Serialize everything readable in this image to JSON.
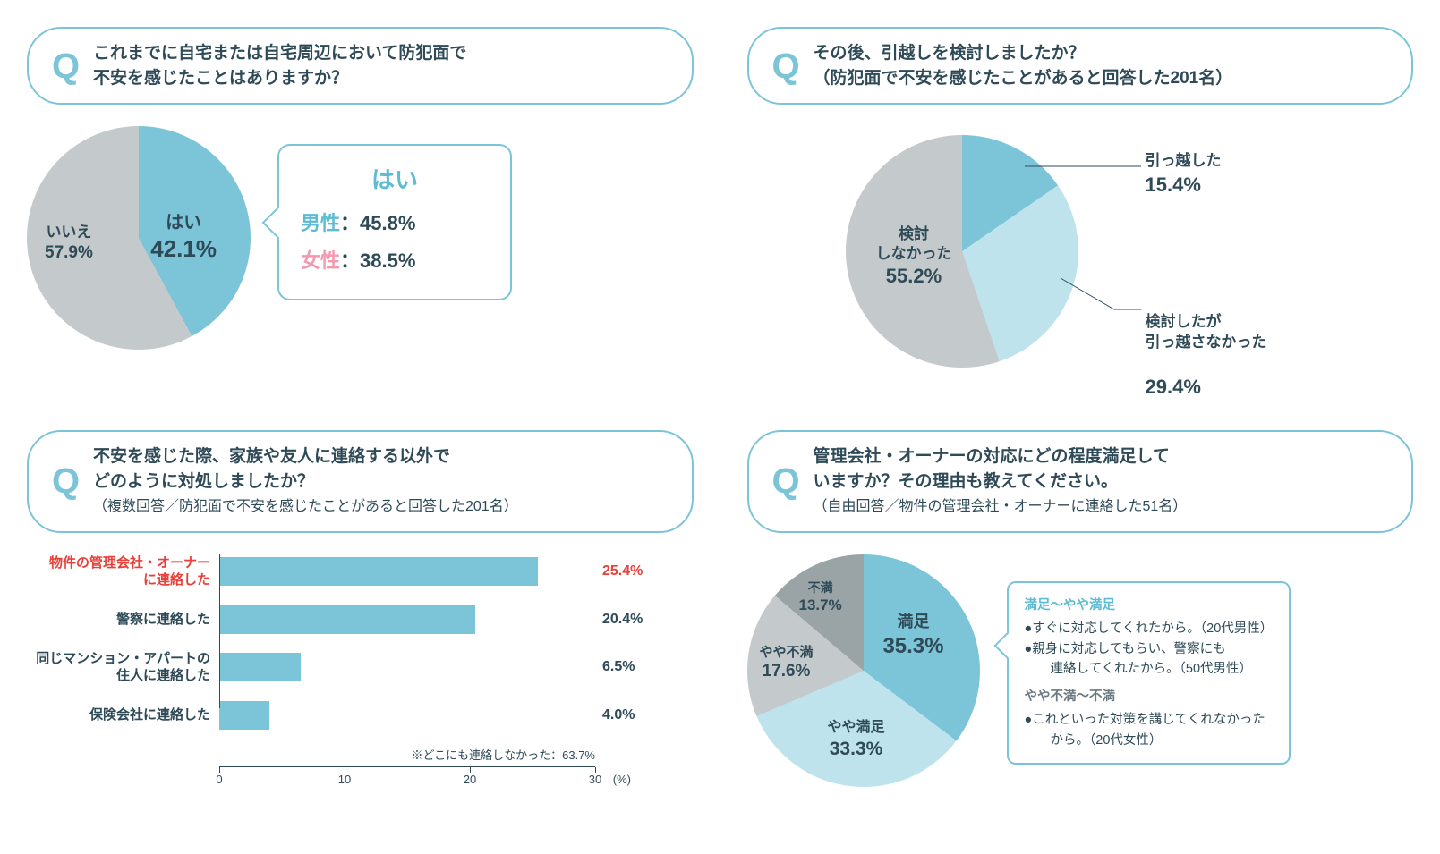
{
  "colors": {
    "accent": "#7cc5d8",
    "accent_light": "#bfe3ec",
    "gray": "#c4c9cb",
    "gray_dark": "#9aa3a6",
    "text": "#2f4a57",
    "red": "#e7403a",
    "pink": "#f49ab0",
    "white": "#ffffff"
  },
  "panel1": {
    "question": "これまでに自宅または自宅周辺において防犯面で\n不安を感じたことはありますか？",
    "pie": {
      "size": 250,
      "slices": [
        {
          "label": "はい",
          "value": 42.1,
          "color": "#7cc5d8"
        },
        {
          "label": "いいえ",
          "value": 57.9,
          "color": "#c4c9cb"
        }
      ]
    },
    "yes_label": "はい",
    "yes_pct": "42.1%",
    "no_label": "いいえ",
    "no_pct": "57.9%",
    "callout": {
      "title": "はい",
      "male_label": "男性",
      "male_pct": "45.8%",
      "female_label": "女性",
      "female_pct": "38.5%"
    }
  },
  "panel2": {
    "question_l1": "その後、引越しを検討しましたか？",
    "question_l2": "（防犯面で不安を感じたことがあると回答した201名）",
    "pie": {
      "size": 260,
      "slices": [
        {
          "key": "moved",
          "label": "引っ越した",
          "pct": "15.4%",
          "value": 15.4,
          "color": "#7cc5d8"
        },
        {
          "key": "considered",
          "label": "検討したが\n引っ越さなかった",
          "pct": "29.4%",
          "value": 29.4,
          "color": "#bfe3ec"
        },
        {
          "key": "not",
          "label": "検討\nしなかった",
          "pct": "55.2%",
          "value": 55.2,
          "color": "#c4c9cb"
        }
      ]
    }
  },
  "panel3": {
    "question_l1": "不安を感じた際、家族や友人に連絡する以外で",
    "question_l2": "どのように対処しましたか？",
    "question_l3": "（複数回答／防犯面で不安を感じたことがあると回答した201名）",
    "bars": {
      "max": 30,
      "ticks": [
        0,
        10,
        20,
        30
      ],
      "unit": "(%)",
      "items": [
        {
          "label": "物件の管理会社・オーナー\nに連絡した",
          "value": 25.4,
          "display": "25.4%",
          "highlight": true
        },
        {
          "label": "警察に連絡した",
          "value": 20.4,
          "display": "20.4%",
          "highlight": false
        },
        {
          "label": "同じマンション・アパートの\n住人に連絡した",
          "value": 6.5,
          "display": "6.5%",
          "highlight": false
        },
        {
          "label": "保険会社に連絡した",
          "value": 4.0,
          "display": "4.0%",
          "highlight": false
        }
      ],
      "note": "※どこにも連絡しなかった：63.7%"
    }
  },
  "panel4": {
    "question_l1": "管理会社・オーナーの対応にどの程度満足して",
    "question_l2": "いますか？その理由も教えてください。",
    "question_l3": "（自由回答／物件の管理会社・オーナーに連絡した51名）",
    "pie": {
      "size": 260,
      "slices": [
        {
          "label": "満足",
          "pct": "35.3%",
          "value": 35.3,
          "color": "#7cc5d8"
        },
        {
          "label": "やや満足",
          "pct": "33.3%",
          "value": 33.3,
          "color": "#bfe3ec"
        },
        {
          "label": "やや不満",
          "pct": "17.6%",
          "value": 17.6,
          "color": "#c4c9cb"
        },
        {
          "label": "不満",
          "pct": "13.7%",
          "value": 13.7,
          "color": "#9aa3a6"
        }
      ]
    },
    "callout": {
      "pos_head": "満足～やや満足",
      "pos1": "●すぐに対応してくれたから。（20代男性）",
      "pos2": "●親身に対応してもらい、警察にも\n　連絡してくれたから。（50代男性）",
      "neg_head": "やや不満～不満",
      "neg1": "●これといった対策を講じてくれなかった\n　から。（20代女性）"
    }
  }
}
